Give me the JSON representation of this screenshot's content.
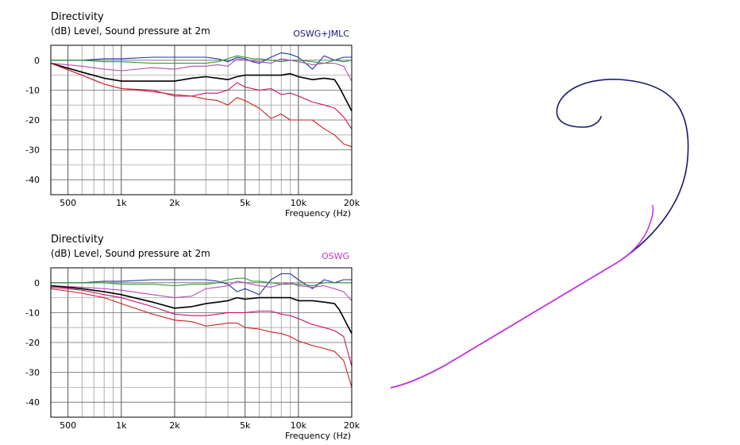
{
  "charts": [
    {
      "title": "Directivity",
      "subtitle": "(dB)  Level, Sound pressure at 2m",
      "legend_label": "OSWG+JMLC",
      "legend_color": "#1a1a6e",
      "xlabel": "Frequency  (Hz)"
    },
    {
      "title": "Directivity",
      "subtitle": "(dB)  Level, Sound pressure at 2m",
      "legend_label": "OSWG",
      "legend_color": "#cc33cc",
      "xlabel": "Frequency  (Hz)"
    }
  ],
  "chart_data": [
    {
      "type": "line",
      "title": "Directivity",
      "ylabel": "(dB) Level, Sound pressure at 2m",
      "xlabel": "Frequency (Hz)",
      "x_scale": "log",
      "xlim": [
        400,
        20000
      ],
      "ylim": [
        -45,
        5
      ],
      "x_ticks": [
        500,
        1000,
        2000,
        5000,
        10000,
        20000
      ],
      "x_tick_labels": [
        "500",
        "1k",
        "2k",
        "5k",
        "10k",
        "20k"
      ],
      "y_ticks": [
        0,
        -10,
        -20,
        -30,
        -40
      ],
      "grid": true,
      "legend": "OSWG+JMLC",
      "series": [
        {
          "color": "#2233aa",
          "x": [
            400,
            600,
            800,
            1000,
            1500,
            2000,
            2500,
            3000,
            3500,
            4000,
            4500,
            5000,
            5500,
            6000,
            7000,
            8000,
            9000,
            10000,
            12000,
            14000,
            16000,
            18000,
            20000
          ],
          "y": [
            0,
            0,
            0.5,
            0.5,
            1,
            1,
            1,
            1,
            0.5,
            -0.5,
            1,
            0.5,
            -0.5,
            -1,
            1,
            2.5,
            2,
            1,
            -3,
            1.5,
            0,
            1,
            1
          ]
        },
        {
          "color": "#339933",
          "x": [
            400,
            600,
            800,
            1000,
            1500,
            2000,
            2500,
            3000,
            3500,
            4000,
            4500,
            5000,
            5500,
            6000,
            7000,
            8000,
            9000,
            10000,
            12000,
            14000,
            16000,
            18000,
            20000
          ],
          "y": [
            0,
            0,
            -0.5,
            -0.5,
            -1,
            -1,
            -1,
            -1,
            -0.5,
            0.5,
            1.5,
            1,
            0.5,
            0.5,
            0,
            -0.5,
            0,
            0,
            -0.5,
            -1,
            0,
            -0.5,
            0
          ]
        },
        {
          "color": "#b34db3",
          "x": [
            400,
            600,
            800,
            1000,
            1500,
            2000,
            2500,
            3000,
            3500,
            4000,
            4500,
            5000,
            6000,
            7000,
            8000,
            9000,
            10000,
            12000,
            14000,
            16000,
            18000,
            20000
          ],
          "y": [
            -1,
            -2,
            -3,
            -3.5,
            -2.5,
            -3,
            -2,
            -2,
            -1.5,
            -2,
            0.5,
            0,
            -0.5,
            -1,
            0.5,
            0,
            -0.5,
            -1.5,
            -1,
            -1,
            -2,
            -7
          ]
        },
        {
          "color": "#000000",
          "x": [
            400,
            600,
            800,
            1000,
            1500,
            2000,
            2500,
            3000,
            3500,
            4000,
            4500,
            5000,
            6000,
            7000,
            8000,
            9000,
            10000,
            12000,
            14000,
            16000,
            17000,
            20000
          ],
          "y": [
            -1,
            -4,
            -6,
            -7,
            -7,
            -7,
            -6,
            -5.5,
            -6,
            -6.5,
            -5.5,
            -5,
            -5,
            -5,
            -5,
            -4.5,
            -5.5,
            -6.5,
            -6,
            -6.5,
            -9,
            -17
          ]
        },
        {
          "color": "#cc1166",
          "x": [
            400,
            600,
            800,
            1000,
            1500,
            2000,
            2500,
            3000,
            3500,
            4000,
            4500,
            5000,
            6000,
            7000,
            8000,
            9000,
            10000,
            12000,
            14000,
            16000,
            18000,
            20000
          ],
          "y": [
            -1,
            -5,
            -8,
            -9.5,
            -10,
            -12,
            -12,
            -11,
            -11,
            -10,
            -7.5,
            -9,
            -10,
            -9.5,
            -11.5,
            -11,
            -12,
            -14,
            -15,
            -16,
            -19,
            -23
          ]
        },
        {
          "color": "#cc2222",
          "x": [
            400,
            600,
            800,
            1000,
            1500,
            2000,
            2500,
            3000,
            3500,
            4000,
            4500,
            5000,
            6000,
            7000,
            8000,
            9000,
            10000,
            12000,
            14000,
            16000,
            18000,
            20000
          ],
          "y": [
            -1,
            -5,
            -8,
            -9.5,
            -10.5,
            -11.5,
            -12,
            -13,
            -13.5,
            -15,
            -12.5,
            -13.5,
            -16,
            -19.5,
            -18,
            -20,
            -20,
            -20,
            -23,
            -25,
            -28,
            -29
          ]
        }
      ]
    },
    {
      "type": "line",
      "title": "Directivity",
      "ylabel": "(dB) Level, Sound pressure at 2m",
      "xlabel": "Frequency (Hz)",
      "x_scale": "log",
      "xlim": [
        400,
        20000
      ],
      "ylim": [
        -45,
        5
      ],
      "x_ticks": [
        500,
        1000,
        2000,
        5000,
        10000,
        20000
      ],
      "x_tick_labels": [
        "500",
        "1k",
        "2k",
        "5k",
        "10k",
        "20k"
      ],
      "y_ticks": [
        0,
        -10,
        -20,
        -30,
        -40
      ],
      "grid": true,
      "legend": "OSWG",
      "series": [
        {
          "color": "#2233aa",
          "x": [
            400,
            600,
            800,
            1000,
            1500,
            2000,
            2500,
            3000,
            3500,
            4000,
            4500,
            5000,
            5500,
            6000,
            7000,
            8000,
            9000,
            10000,
            12000,
            14000,
            16000,
            18000,
            20000
          ],
          "y": [
            0,
            0,
            0.5,
            0.5,
            1,
            1,
            1,
            1,
            0.5,
            -0.5,
            -3,
            -2,
            -3,
            -4,
            1,
            3,
            3,
            1,
            -2,
            1,
            0,
            1,
            1
          ]
        },
        {
          "color": "#339933",
          "x": [
            400,
            600,
            800,
            1000,
            1500,
            2000,
            2500,
            3000,
            3500,
            4000,
            4500,
            5000,
            5500,
            6000,
            7000,
            8000,
            9000,
            10000,
            12000,
            14000,
            16000,
            18000,
            20000
          ],
          "y": [
            0,
            0,
            0,
            -0.5,
            -0.5,
            -1,
            -0.5,
            -0.5,
            0,
            1,
            1.5,
            1.5,
            0.5,
            0.5,
            0,
            -0.5,
            -0.5,
            -0.5,
            -1,
            0,
            0,
            0,
            0
          ]
        },
        {
          "color": "#b34db3",
          "x": [
            400,
            600,
            800,
            1000,
            1500,
            2000,
            2500,
            3000,
            3500,
            4000,
            4500,
            5000,
            6000,
            7000,
            8000,
            9000,
            10000,
            12000,
            14000,
            16000,
            18000,
            20000
          ],
          "y": [
            -1,
            -1.5,
            -2,
            -2.5,
            -4,
            -5,
            -4.5,
            -2,
            -1.5,
            -1,
            0.5,
            0,
            -1,
            -1.5,
            -0.5,
            0,
            -1,
            -1.5,
            -1,
            -2,
            -3,
            -6
          ]
        },
        {
          "color": "#000000",
          "x": [
            400,
            600,
            800,
            1000,
            1500,
            2000,
            2500,
            3000,
            3500,
            4000,
            4500,
            5000,
            6000,
            7000,
            8000,
            9000,
            10000,
            12000,
            14000,
            16000,
            17000,
            20000
          ],
          "y": [
            -1,
            -2,
            -3,
            -4,
            -6.5,
            -8.5,
            -8,
            -7,
            -6.5,
            -6,
            -5,
            -5.5,
            -5,
            -5,
            -5,
            -5,
            -6,
            -6,
            -6.5,
            -7,
            -9,
            -17
          ]
        },
        {
          "color": "#cc1166",
          "x": [
            400,
            600,
            800,
            1000,
            1500,
            2000,
            2500,
            3000,
            3500,
            4000,
            4500,
            5000,
            6000,
            7000,
            8000,
            9000,
            10000,
            12000,
            14000,
            16000,
            18000,
            20000
          ],
          "y": [
            -1.5,
            -2.5,
            -4,
            -5,
            -8,
            -10.5,
            -11,
            -11,
            -10.5,
            -10,
            -10,
            -10,
            -9.5,
            -9.5,
            -10.5,
            -11,
            -12,
            -14,
            -15,
            -16,
            -18,
            -28
          ]
        },
        {
          "color": "#cc2222",
          "x": [
            400,
            600,
            800,
            1000,
            1500,
            2000,
            2500,
            3000,
            3500,
            4000,
            4500,
            5000,
            6000,
            7000,
            8000,
            9000,
            10000,
            12000,
            14000,
            16000,
            18000,
            20000
          ],
          "y": [
            -2,
            -3.5,
            -5,
            -7,
            -10.5,
            -12.5,
            -13,
            -14.5,
            -14,
            -13.5,
            -13.5,
            -15,
            -15.5,
            -16.5,
            -17,
            -18,
            -19.5,
            -21,
            -22,
            -23,
            -26,
            -35
          ]
        }
      ]
    }
  ]
}
